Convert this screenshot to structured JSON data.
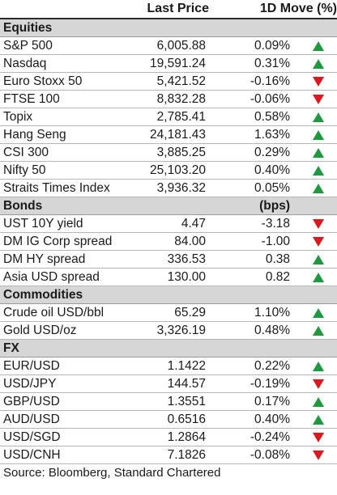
{
  "header": {
    "price_label": "Last Price",
    "move_label": "1D Move (%)"
  },
  "sections": [
    {
      "title": "Equities",
      "unit": "",
      "rows": [
        {
          "name": "S&P 500",
          "price": "6,005.88",
          "move": "0.09%",
          "dir": "up"
        },
        {
          "name": "Nasdaq",
          "price": "19,591.24",
          "move": "0.31%",
          "dir": "up"
        },
        {
          "name": "Euro Stoxx 50",
          "price": "5,421.52",
          "move": "-0.16%",
          "dir": "down"
        },
        {
          "name": "FTSE 100",
          "price": "8,832.28",
          "move": "-0.06%",
          "dir": "down"
        },
        {
          "name": "Topix",
          "price": "2,785.41",
          "move": "0.58%",
          "dir": "up"
        },
        {
          "name": "Hang Seng",
          "price": "24,181.43",
          "move": "1.63%",
          "dir": "up"
        },
        {
          "name": "CSI 300",
          "price": "3,885.25",
          "move": "0.29%",
          "dir": "up"
        },
        {
          "name": "Nifty 50",
          "price": "25,103.20",
          "move": "0.40%",
          "dir": "up"
        },
        {
          "name": "Straits Times Index",
          "price": "3,936.32",
          "move": "0.05%",
          "dir": "up"
        }
      ]
    },
    {
      "title": "Bonds",
      "unit": "(bps)",
      "rows": [
        {
          "name": "UST 10Y yield",
          "price": "4.47",
          "move": "-3.18",
          "dir": "down"
        },
        {
          "name": "DM IG Corp spread",
          "price": "84.00",
          "move": "-1.00",
          "dir": "down"
        },
        {
          "name": "DM HY spread",
          "price": "336.53",
          "move": "0.38",
          "dir": "up"
        },
        {
          "name": "Asia USD spread",
          "price": "130.00",
          "move": "0.82",
          "dir": "up"
        }
      ]
    },
    {
      "title": "Commodities",
      "unit": "",
      "rows": [
        {
          "name": "Crude oil USD/bbl",
          "price": "65.29",
          "move": "1.10%",
          "dir": "up"
        },
        {
          "name": "Gold USD/oz",
          "price": "3,326.19",
          "move": "0.48%",
          "dir": "up"
        }
      ]
    },
    {
      "title": "FX",
      "unit": "",
      "rows": [
        {
          "name": "EUR/USD",
          "price": "1.1422",
          "move": "0.22%",
          "dir": "up"
        },
        {
          "name": "USD/JPY",
          "price": "144.57",
          "move": "-0.19%",
          "dir": "down"
        },
        {
          "name": "GBP/USD",
          "price": "1.3551",
          "move": "0.17%",
          "dir": "up"
        },
        {
          "name": "AUD/USD",
          "price": "0.6516",
          "move": "0.40%",
          "dir": "up"
        },
        {
          "name": "USD/SGD",
          "price": "1.2864",
          "move": "-0.24%",
          "dir": "down"
        },
        {
          "name": "USD/CNH",
          "price": "7.1826",
          "move": "-0.08%",
          "dir": "down"
        }
      ]
    }
  ],
  "source": "Source: Bloomberg, Standard Chartered",
  "colors": {
    "up": "#1c9a3e",
    "down": "#e0161e",
    "section_bg": "#d6d6d6"
  },
  "icons": {
    "up": "up-triangle-icon",
    "down": "down-triangle-icon"
  }
}
